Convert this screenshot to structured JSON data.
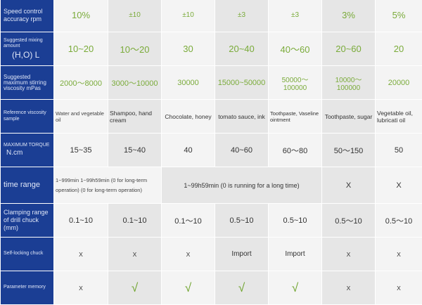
{
  "rows": [
    {
      "label": "Speed control accuracy rpm",
      "cells": [
        "10%",
        "±10",
        "±10",
        "±3",
        "±3",
        "3%",
        "5%"
      ]
    },
    {
      "label_small": "Suggested mixing amount",
      "label_big": "(H,O) L",
      "cells": [
        "10~20",
        "10～20",
        "30",
        "20~40",
        "40～60",
        "20~60",
        "20"
      ]
    },
    {
      "label": "Suggested maximum stirring viscosity mPas",
      "cells": [
        "2000～8000",
        "3000～10000",
        "30000",
        "15000~50000",
        "50000～100000",
        "10000～100000",
        "20000"
      ]
    },
    {
      "label": "Reference viscosity sample",
      "cells": [
        "Water and vegetable oil",
        "Shampoo, hand cream",
        "Chocolate, honey",
        "tomato sauce, ink",
        "Toothpaste, Vaseline ointment",
        "Toothpaste, sugar",
        "Vegetable oil, lubricati oil"
      ]
    },
    {
      "label_small": "MAXIMUM TORQUE",
      "label_big": "N.cm",
      "cells": [
        "15~35",
        "15~40",
        "40",
        "40~60",
        "60～80",
        "50～150",
        "50"
      ]
    },
    {
      "label": "time range",
      "cells": [
        "1~999min 1~99h59min (0 for long-term operation) (0 for long-term operation)",
        "1~99h59min (0 is running for a long time)",
        "X",
        "X"
      ]
    },
    {
      "label": "Clamping range of drill chuck (mm)",
      "cells": [
        "0.1~10",
        "0.1~10",
        "0.1～10",
        "0.5~10",
        "0.5~10",
        "0.5～10",
        "0.5～10"
      ]
    },
    {
      "label": "Self-locking chuck",
      "cells": [
        "X",
        "X",
        "X",
        "Import",
        "Import",
        "X",
        "X"
      ]
    },
    {
      "label": "Parameter memory",
      "cells": [
        "X",
        "√",
        "√",
        "√",
        "√",
        "X",
        "X"
      ]
    }
  ]
}
